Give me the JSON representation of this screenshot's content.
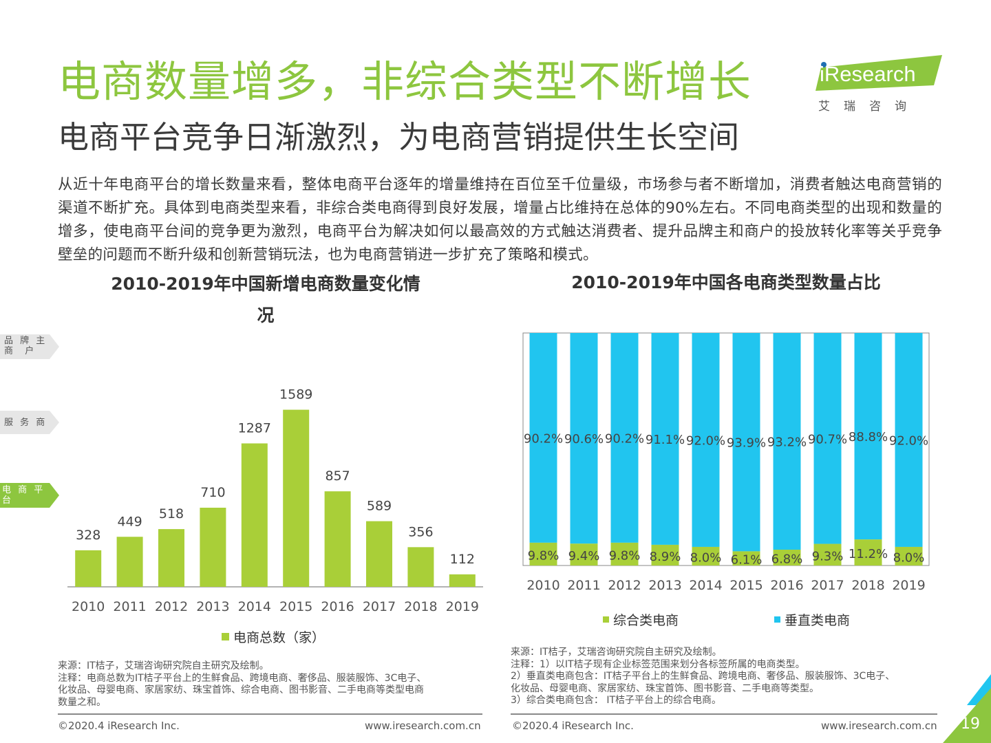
{
  "header": {
    "title": "电商数量增多，非综合类型不断增长",
    "subtitle": "电商平台竞争日渐激烈，为电商营销提供生长空间",
    "body": "从近十年电商平台的增长数量来看，整体电商平台逐年的增量维持在百位至千位量级，市场参与者不断增加，消费者触达电商营销的渠道不断扩充。具体到电商类型来看，非综合类电商得到良好发展，增量占比维持在总体的90%左右。不同电商类型的出现和数量的增多，使电商平台间的竞争更为激烈，电商平台为解决如何以最高效的方式触达消费者、提升品牌主和商户的投放转化率等关乎竞争壁垒的问题而不断升级和创新营销玩法，也为电商营销进一步扩充了策略和模式。"
  },
  "logo": {
    "text": "iResearch",
    "sub": "艾瑞咨询"
  },
  "side_tabs": {
    "brand": [
      "品 牌 主",
      "商  户"
    ],
    "service": "服 务 商",
    "platform": "电 商 平 台"
  },
  "colors": {
    "green": "#a9cf38",
    "blue": "#21c5ef",
    "title_green": "#8dc63f"
  },
  "chart_data": [
    {
      "type": "bar",
      "title": "2010-2019年中国新增电商数量变化情况",
      "title_lines": [
        "2010-2019年中国新增电商数量变化情",
        "况"
      ],
      "categories": [
        "2010",
        "2011",
        "2012",
        "2013",
        "2014",
        "2015",
        "2016",
        "2017",
        "2018",
        "2019"
      ],
      "series": [
        {
          "name": "电商总数（家）",
          "values": [
            328,
            449,
            518,
            710,
            1287,
            1589,
            857,
            589,
            356,
            112
          ]
        }
      ],
      "ylim": [
        0,
        1700
      ],
      "grid": false,
      "legend": "bottom"
    },
    {
      "type": "bar",
      "stacked": true,
      "title": "2010-2019年中国各电商类型数量占比",
      "categories": [
        "2010",
        "2011",
        "2012",
        "2013",
        "2014",
        "2015",
        "2016",
        "2017",
        "2018",
        "2019"
      ],
      "series": [
        {
          "name": "综合类电商",
          "values": [
            9.8,
            9.4,
            9.8,
            8.9,
            8.0,
            6.1,
            6.8,
            9.3,
            11.2,
            8.0
          ],
          "labels": [
            "9.8%",
            "9.4%",
            "9.8%",
            "8.9%",
            "8.0%",
            "6.1%",
            "6.8%",
            "9.3%",
            "11.2%",
            "8.0%"
          ]
        },
        {
          "name": "垂直类电商",
          "values": [
            90.2,
            90.6,
            90.2,
            91.1,
            92.0,
            93.9,
            93.2,
            90.7,
            88.8,
            92.0
          ],
          "labels": [
            "90.2%",
            "90.6%",
            "90.2%",
            "91.1%",
            "92.0%",
            "93.9%",
            "93.2%",
            "90.7%",
            "88.8%",
            "92.0%"
          ]
        }
      ],
      "ylim": [
        0,
        100
      ],
      "grid": false,
      "legend": "bottom"
    }
  ],
  "notes_left": [
    "来源：IT桔子，艾瑞咨询研究院自主研究及绘制。",
    "注释：电商总数为IT桔子平台上的生鲜食品、跨境电商、奢侈品、服装服饰、3C电子、",
    "化妆品、母婴电商、家居家纺、珠宝首饰、综合电商、图书影音、二手电商等类型电商",
    "数量之和。"
  ],
  "notes_right": [
    "来源：IT桔子，艾瑞咨询研究院自主研究及绘制。",
    "注释：1）以IT桔子现有企业标签范围来划分各标签所属的电商类型。",
    "2）垂直类电商包含：IT桔子平台上的生鲜食品、跨境电商、奢侈品、服装服饰、3C电子、",
    "化妆品、母婴电商、家居家纺、珠宝首饰、图书影音、二手电商等类型。",
    "3）综合类电商包含： IT桔子平台上的综合电商。"
  ],
  "footer": {
    "copyright": "©2020.4 iResearch Inc.",
    "url": "www.iresearch.com.cn",
    "page": "19"
  }
}
